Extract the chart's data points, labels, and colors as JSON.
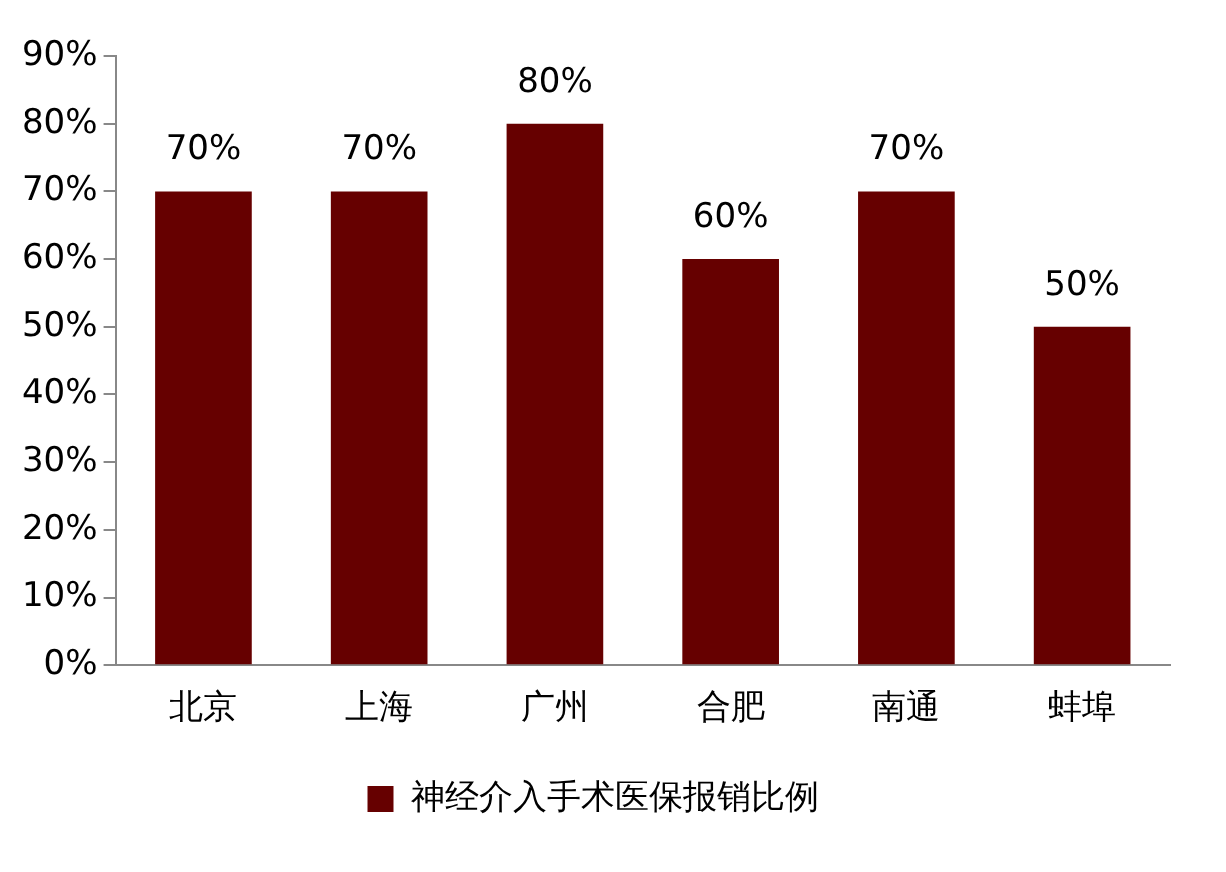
{
  "chart_data": {
    "type": "bar",
    "categories": [
      "北京",
      "上海",
      "广州",
      "合肥",
      "南通",
      "蚌埠"
    ],
    "series": [
      {
        "name": "神经介入手术医保报销比例",
        "color": "#660000",
        "values": [
          70,
          70,
          80,
          60,
          70,
          50
        ],
        "value_labels": [
          "70%",
          "70%",
          "80%",
          "60%",
          "70%",
          "50%"
        ]
      }
    ],
    "ylim": [
      0,
      90
    ],
    "yticks": [
      {
        "value": 0,
        "label": "0%"
      },
      {
        "value": 10,
        "label": "10%"
      },
      {
        "value": 20,
        "label": "20%"
      },
      {
        "value": 30,
        "label": "30%"
      },
      {
        "value": 40,
        "label": "40%"
      },
      {
        "value": 50,
        "label": "50%"
      },
      {
        "value": 60,
        "label": "60%"
      },
      {
        "value": 70,
        "label": "70%"
      },
      {
        "value": 80,
        "label": "80%"
      },
      {
        "value": 90,
        "label": "90%"
      }
    ],
    "grid": false,
    "legend": "bottom"
  }
}
